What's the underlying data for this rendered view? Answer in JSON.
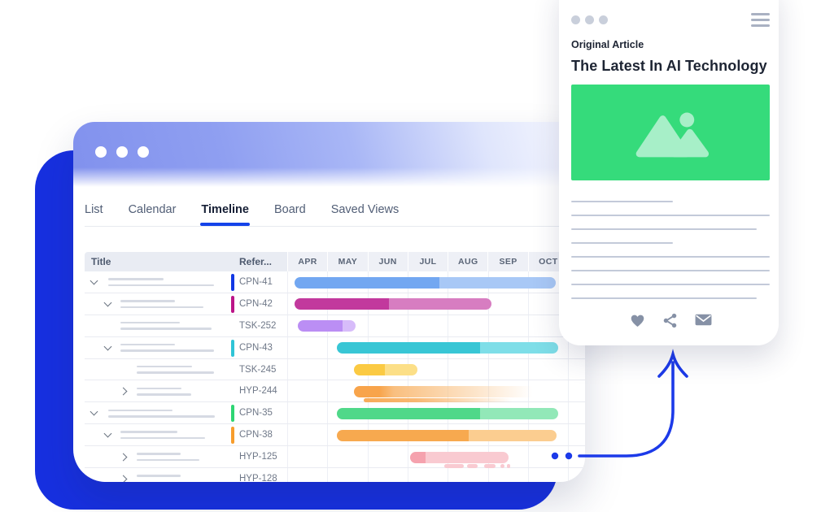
{
  "window": {
    "controls_dots": 3,
    "tabs": [
      {
        "label": "List",
        "active": false
      },
      {
        "label": "Calendar",
        "active": false
      },
      {
        "label": "Timeline",
        "active": true
      },
      {
        "label": "Board",
        "active": false
      },
      {
        "label": "Saved Views",
        "active": false
      }
    ],
    "table_headers": {
      "title": "Title",
      "reference": "Refer..."
    }
  },
  "chart_data": {
    "type": "gantt-timeline",
    "months": [
      "APR",
      "MAY",
      "JUN",
      "JUL",
      "AUG",
      "SEP",
      "OCT"
    ],
    "units_note": "bar start/end/split expressed in month units, APR = 0",
    "rows": [
      {
        "ref": "CPN-41",
        "level": 0,
        "chevron": "down",
        "accent": "#1238e4",
        "skeleton": [
          68,
          130
        ],
        "bar": {
          "start": 0.18,
          "end": 6.7,
          "split": 3.8,
          "dark": "#72a7f1",
          "light": "#a8c8f6"
        }
      },
      {
        "ref": "CPN-42",
        "level": 1,
        "chevron": "down",
        "accent": "#bc1488",
        "skeleton": [
          67,
          102
        ],
        "bar": {
          "start": 0.18,
          "end": 5.1,
          "split": 2.54,
          "dark": "#c2399d",
          "light": "#d77dc1"
        }
      },
      {
        "ref": "TSK-252",
        "level": 1,
        "chevron": null,
        "accent": null,
        "skeleton": [
          73,
          112
        ],
        "bar": {
          "start": 0.26,
          "end": 1.7,
          "split": 1.38,
          "dark": "#bb8ef4",
          "light": "#d7bcfa"
        }
      },
      {
        "ref": "CPN-43",
        "level": 1,
        "chevron": "down",
        "accent": "#2fc4d6",
        "skeleton": [
          67,
          115
        ],
        "bar": {
          "start": 1.24,
          "end": 6.76,
          "split": 4.81,
          "dark": "#38c6d5",
          "light": "#7edee8"
        }
      },
      {
        "ref": "TSK-245",
        "level": 2,
        "chevron": null,
        "accent": null,
        "skeleton": [
          68,
          95
        ],
        "bar": {
          "start": 1.66,
          "end": 3.25,
          "split": 2.43,
          "dark": "#fbca43",
          "light": "#fcdf87"
        }
      },
      {
        "ref": "HYP-244",
        "level": 2,
        "chevron": "right",
        "accent": null,
        "skeleton": [
          55,
          67
        ],
        "bar": {
          "start": 1.66,
          "end": 6.2,
          "split": 2.29,
          "dark": "#f8a44b",
          "light": "#f9bf7f",
          "fade": true
        },
        "subbar": {
          "start": 1.91,
          "end": 5.62,
          "color": "#f8ab59",
          "fade": true
        }
      },
      {
        "ref": "CPN-35",
        "level": 0,
        "chevron": "down",
        "accent": "#2ed573",
        "skeleton": [
          79,
          131
        ],
        "bar": {
          "start": 1.24,
          "end": 6.76,
          "split": 4.81,
          "dark": "#50d889",
          "light": "#92e8b8"
        }
      },
      {
        "ref": "CPN-38",
        "level": 1,
        "chevron": "down",
        "accent": "#f79d2c",
        "skeleton": [
          70,
          104
        ],
        "bar": {
          "start": 1.24,
          "end": 6.71,
          "split": 4.52,
          "dark": "#f7a94f",
          "light": "#fbcd90"
        }
      },
      {
        "ref": "HYP-125",
        "level": 2,
        "chevron": "right",
        "accent": null,
        "skeleton": [
          54,
          77
        ],
        "bar": {
          "start": 3.06,
          "end": 5.52,
          "split": 3.45,
          "dark": "#f5a2ae",
          "light": "#f9cad1"
        },
        "dashes": [
          [
            3.91,
            4.4
          ],
          [
            4.48,
            4.75
          ],
          [
            4.91,
            5.19
          ],
          [
            5.31,
            5.41
          ],
          [
            5.48,
            5.56
          ]
        ],
        "dash_color": "#f9cad1"
      },
      {
        "ref": "HYP-128",
        "level": 2,
        "chevron": "right",
        "accent": null,
        "skeleton": [
          54
        ],
        "bar": null
      }
    ]
  },
  "article": {
    "kicker": "Original Article",
    "title": "The Latest In AI Technology",
    "line_widths": [
      125,
      244,
      228,
      125,
      244,
      244,
      244,
      228
    ],
    "actions": [
      "heart",
      "share",
      "email"
    ]
  },
  "colors": {
    "backdrop_blue": "#1730e0",
    "arrow_blue": "#1c3ae9",
    "image_green": "#35db7b",
    "image_glyph_green": "#a7efc8",
    "tab_underline": "#1443e9"
  }
}
